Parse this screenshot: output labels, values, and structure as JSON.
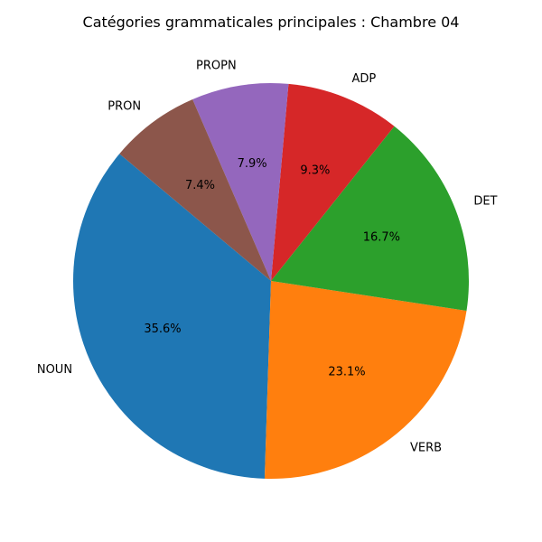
{
  "chart_data": {
    "type": "pie",
    "title": "Catégories grammaticales principales : Chambre 04",
    "categories": [
      "NOUN",
      "VERB",
      "DET",
      "ADP",
      "PROPN",
      "PRON"
    ],
    "values": [
      35.6,
      23.1,
      16.7,
      9.3,
      7.9,
      7.4
    ],
    "value_labels": [
      "35.6%",
      "23.1%",
      "16.7%",
      "9.3%",
      "7.9%",
      "7.4%"
    ],
    "colors": [
      "#1f77b4",
      "#ff7f0e",
      "#2ca02c",
      "#d62728",
      "#9467bd",
      "#8c564b"
    ],
    "start_angle_deg": 140,
    "direction": "counterclockwise",
    "legend": "none"
  }
}
